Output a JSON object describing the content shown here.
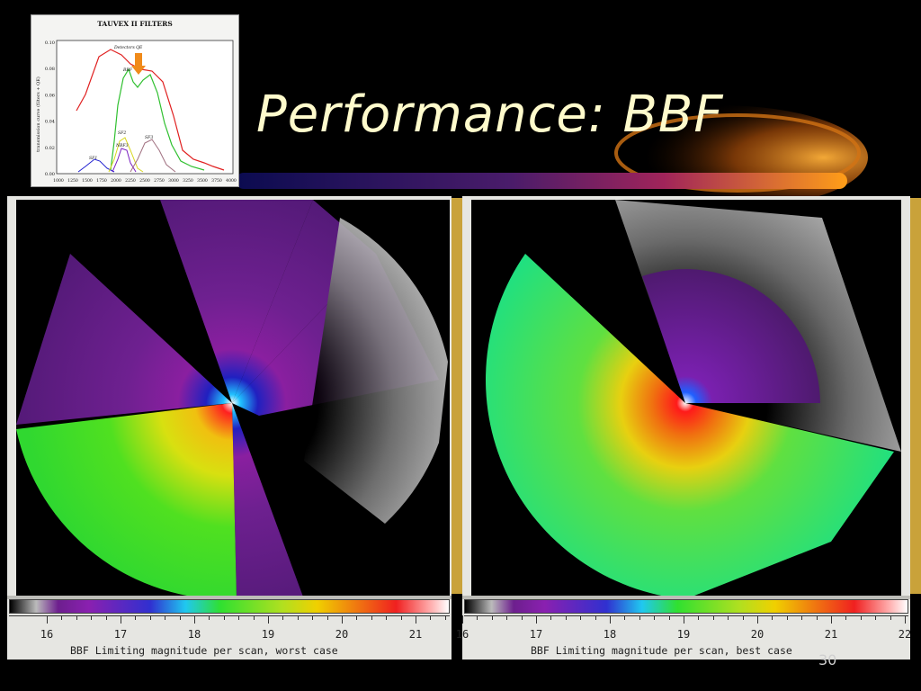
{
  "slide": {
    "title": "Performance: BBF",
    "page_number": "30"
  },
  "thumbnail": {
    "title": "TAUVEX II   FILTERS",
    "ylabel": "transmission curve (filters + QE)",
    "y_ticks": [
      "0.10",
      "0.08",
      "0.06",
      "0.04",
      "0.02",
      "0.00"
    ],
    "x_ticks": [
      "1000",
      "1250",
      "1500",
      "1750",
      "2000",
      "2250",
      "2500",
      "2750",
      "3000",
      "3250",
      "3500",
      "3750",
      "4000"
    ],
    "curve_labels": [
      "Detectors QE",
      "BBF",
      "SF2",
      "NBF3",
      "SF1",
      "SF3"
    ]
  },
  "panels": {
    "left": {
      "caption": "BBF Limiting magnitude per scan, worst case",
      "scale_ticks": [
        "16",
        "17",
        "18",
        "19",
        "20",
        "21"
      ]
    },
    "right": {
      "caption": "BBF Limiting magnitude per scan, best case",
      "scale_ticks": [
        "16",
        "17",
        "18",
        "19",
        "20",
        "21",
        "22"
      ]
    }
  },
  "colors": {
    "title": "#fffbcc",
    "accent_orange": "#f08a1a",
    "frame_gold": "#c9a23a"
  }
}
